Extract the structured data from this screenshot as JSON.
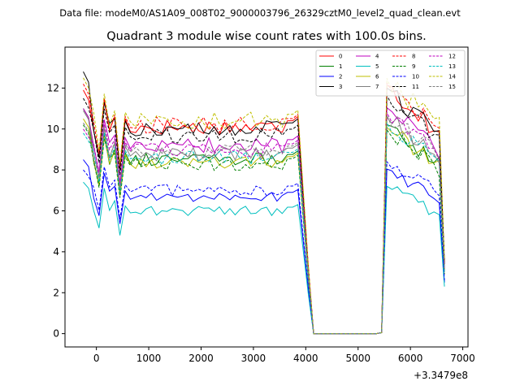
{
  "suptitle": "Data file: modeM0/AS1A09_008T02_9000003796_26329cztM0_level2_quad_clean.evt",
  "chart_data": {
    "type": "line",
    "title": "Quadrant 3 module wise count rates with 100.0s bins.",
    "xlabel": "",
    "ylabel": "",
    "x_offset_label": "+3.3479e8",
    "xlim": [
      -600,
      7100
    ],
    "ylim": [
      -0.65,
      14.0
    ],
    "xticks": [
      0,
      1000,
      2000,
      3000,
      4000,
      5000,
      6000,
      7000
    ],
    "yticks": [
      0,
      2,
      4,
      6,
      8,
      10,
      12
    ],
    "grid": false,
    "legend": {
      "location": "top-right",
      "columns": 4
    },
    "segments": [
      {
        "x_start": -250,
        "step": 100,
        "points": 42
      },
      {
        "x_start": 4050,
        "step": 100,
        "points": 14
      },
      {
        "x_start": 5450,
        "step": 100,
        "points": 13
      }
    ],
    "series": [
      {
        "name": "0",
        "color": "#ff0000",
        "style": "solid",
        "base": 10.1,
        "start": 11.9,
        "end": 3.4
      },
      {
        "name": "1",
        "color": "#008000",
        "style": "solid",
        "base": 8.5,
        "start": 11.0,
        "end": 3.0
      },
      {
        "name": "2",
        "color": "#0000ff",
        "style": "solid",
        "base": 6.7,
        "start": 8.5,
        "end": 2.5
      },
      {
        "name": "3",
        "color": "#000000",
        "style": "solid",
        "base": 10.0,
        "start": 12.8,
        "end": 3.5
      },
      {
        "name": "4",
        "color": "#bf00bf",
        "style": "solid",
        "base": 9.2,
        "start": 11.0,
        "end": 3.2
      },
      {
        "name": "5",
        "color": "#00bfbf",
        "style": "solid",
        "base": 6.0,
        "start": 7.4,
        "end": 2.3
      },
      {
        "name": "6",
        "color": "#bfbf00",
        "style": "solid",
        "base": 8.4,
        "start": 10.5,
        "end": 3.0
      },
      {
        "name": "7",
        "color": "#808080",
        "style": "solid",
        "base": 8.8,
        "start": 10.9,
        "end": 3.1
      },
      {
        "name": "8",
        "color": "#ff0000",
        "style": "dashed",
        "base": 10.2,
        "start": 12.2,
        "end": 3.5
      },
      {
        "name": "9",
        "color": "#008000",
        "style": "dashed",
        "base": 8.3,
        "start": 10.2,
        "end": 2.9
      },
      {
        "name": "10",
        "color": "#0000ff",
        "style": "dashed",
        "base": 7.0,
        "start": 8.0,
        "end": 2.6
      },
      {
        "name": "11",
        "color": "#000000",
        "style": "dashed",
        "base": 9.7,
        "start": 11.5,
        "end": 3.4
      },
      {
        "name": "12",
        "color": "#bf00bf",
        "style": "dashed",
        "base": 9.0,
        "start": 10.0,
        "end": 3.2
      },
      {
        "name": "13",
        "color": "#00bfbf",
        "style": "dashed",
        "base": 8.6,
        "start": 9.8,
        "end": 3.0
      },
      {
        "name": "14",
        "color": "#bfbf00",
        "style": "dashed",
        "base": 10.4,
        "start": 12.5,
        "end": 3.6
      },
      {
        "name": "15",
        "color": "#808080",
        "style": "dashed",
        "base": 8.9,
        "start": 10.3,
        "end": 3.1
      }
    ]
  }
}
